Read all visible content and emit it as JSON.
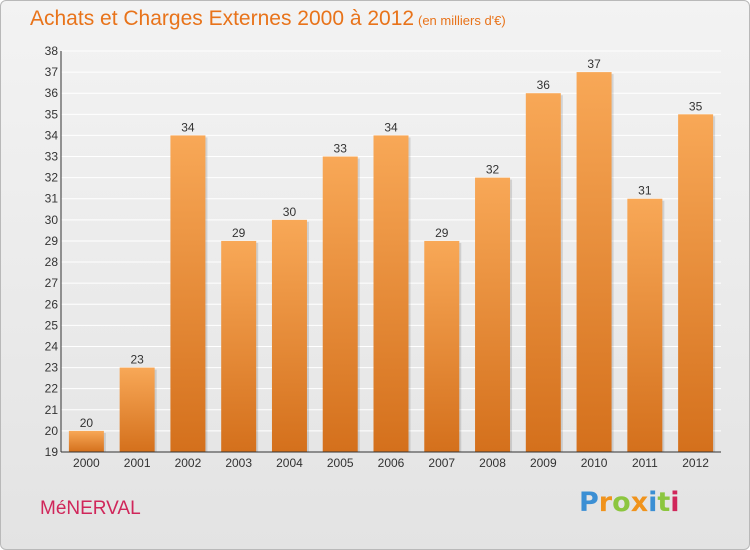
{
  "title": "Achats et Charges Externes 2000 à 2012",
  "subtitle": "(en milliers d'€)",
  "commune": "MéNERVAL",
  "logo": {
    "text": "Proxiti",
    "letter_colors": [
      "#3b8fd4",
      "#f0931c",
      "#8cc63f",
      "#f0931c",
      "#3b8fd4",
      "#8cc63f",
      "#d0265a"
    ]
  },
  "colors": {
    "title": "#e8731a",
    "commune": "#d0265a",
    "bar_top": "#f8a857",
    "bar_bottom": "#d4701c"
  },
  "chart_data": {
    "type": "bar",
    "categories": [
      "2000",
      "2001",
      "2002",
      "2003",
      "2004",
      "2005",
      "2006",
      "2007",
      "2008",
      "2009",
      "2010",
      "2011",
      "2012"
    ],
    "values": [
      20,
      23,
      34,
      29,
      30,
      33,
      34,
      29,
      32,
      36,
      37,
      31,
      35
    ],
    "ylim": [
      19,
      38
    ],
    "yticks": [
      19,
      20,
      21,
      22,
      23,
      24,
      25,
      26,
      27,
      28,
      29,
      30,
      31,
      32,
      33,
      34,
      35,
      36,
      37,
      38
    ],
    "grid": true,
    "data_labels": true
  }
}
